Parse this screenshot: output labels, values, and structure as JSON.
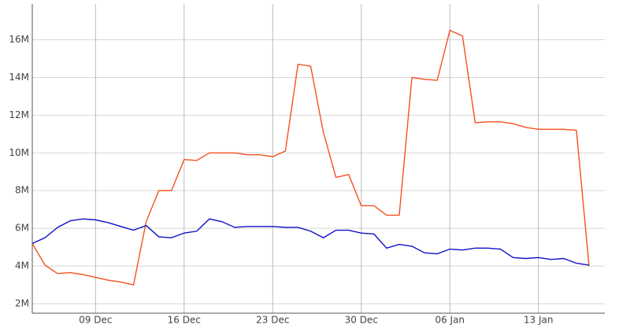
{
  "chart_data": {
    "type": "line",
    "categories": [
      null,
      null,
      null,
      null,
      null,
      "09 Dec",
      null,
      null,
      null,
      null,
      null,
      null,
      "16 Dec",
      null,
      null,
      null,
      null,
      null,
      null,
      "23 Dec",
      null,
      null,
      null,
      null,
      null,
      null,
      "30 Dec",
      null,
      null,
      null,
      null,
      null,
      null,
      "06 Jan",
      null,
      null,
      null,
      null,
      null,
      null,
      "13 Jan",
      null,
      null,
      null,
      null
    ],
    "series": [
      {
        "color": "#f4511e",
        "values": [
          5200000,
          4050000,
          3600000,
          3650000,
          3550000,
          3400000,
          3250000,
          3150000,
          3000000,
          6350000,
          8000000,
          8000000,
          9650000,
          9600000,
          10000000,
          10000000,
          10000000,
          9900000,
          9900000,
          9800000,
          10100000,
          14700000,
          14600000,
          11100000,
          8700000,
          8850000,
          7200000,
          7200000,
          6700000,
          6700000,
          14000000,
          13900000,
          13850000,
          16500000,
          16200000,
          11600000,
          11650000,
          11650000,
          11550000,
          11350000,
          11250000,
          11250000,
          11250000,
          11200000,
          4000000
        ]
      },
      {
        "color": "#1010c8",
        "values": [
          5200000,
          5500000,
          6050000,
          6400000,
          6500000,
          6450000,
          6300000,
          6100000,
          5900000,
          6150000,
          5550000,
          5500000,
          5750000,
          5850000,
          6500000,
          6350000,
          6050000,
          6100000,
          6100000,
          6100000,
          6050000,
          6050000,
          5850000,
          5500000,
          5900000,
          5900000,
          5750000,
          5700000,
          4950000,
          5150000,
          5050000,
          4700000,
          4650000,
          4900000,
          4850000,
          4950000,
          4950000,
          4900000,
          4450000,
          4400000,
          4450000,
          4350000,
          4400000,
          4150000,
          4050000
        ]
      }
    ],
    "ylim": [
      1500000,
      17900000
    ],
    "yticks": [
      {
        "value": 2000000,
        "label": "2M"
      },
      {
        "value": 4000000,
        "label": "4M"
      },
      {
        "value": 6000000,
        "label": "6M"
      },
      {
        "value": 8000000,
        "label": "8M"
      },
      {
        "value": 10000000,
        "label": "10M"
      },
      {
        "value": 12000000,
        "label": "12M"
      },
      {
        "value": 14000000,
        "label": "14M"
      },
      {
        "value": 16000000,
        "label": "16M"
      }
    ],
    "grid": true
  }
}
